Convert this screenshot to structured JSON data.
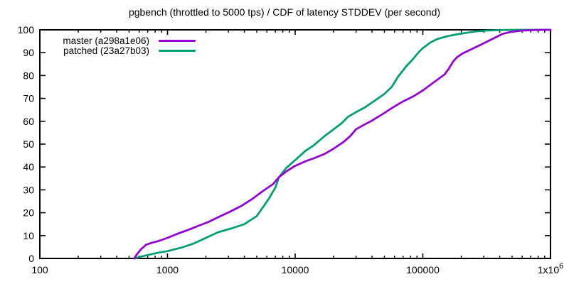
{
  "chart_data": {
    "type": "line",
    "title": "pgbench (throttled to 5000 tps) / CDF of latency STDDEV (per second)",
    "xlabel": "",
    "ylabel": "",
    "x_axis": {
      "scale": "log",
      "min": 100,
      "max": 1000000,
      "ticks": [
        {
          "v": 100,
          "label": "100"
        },
        {
          "v": 1000,
          "label": "1000"
        },
        {
          "v": 10000,
          "label": "10000"
        },
        {
          "v": 100000,
          "label": "100000"
        },
        {
          "v": 1000000,
          "label": "1x10",
          "sup": "6"
        }
      ],
      "minor_ticks": true
    },
    "y_axis": {
      "min": 0,
      "max": 100,
      "step": 10,
      "tick_labels": [
        "0",
        "10",
        "20",
        "30",
        "40",
        "50",
        "60",
        "70",
        "80",
        "90",
        "100"
      ]
    },
    "grid": false,
    "legend": {
      "position": "top-left",
      "entries": [
        {
          "label": "master (a298a1e06)",
          "color": "#9400d3"
        },
        {
          "label": "patched (23a27b03)",
          "color": "#009e73"
        }
      ]
    },
    "series": [
      {
        "name": "patched (23a27b03)",
        "color": "#009e73",
        "points": [
          [
            550,
            0
          ],
          [
            600,
            0.6
          ],
          [
            700,
            1.5
          ],
          [
            850,
            2.5
          ],
          [
            1000,
            3.2
          ],
          [
            1300,
            4.8
          ],
          [
            1600,
            6.5
          ],
          [
            2000,
            9
          ],
          [
            2500,
            11.5
          ],
          [
            3200,
            13.2
          ],
          [
            4000,
            15
          ],
          [
            5000,
            18.5
          ],
          [
            6200,
            26
          ],
          [
            7000,
            31
          ],
          [
            7450,
            35.5
          ],
          [
            8500,
            39.5
          ],
          [
            10000,
            43
          ],
          [
            12000,
            47
          ],
          [
            14000,
            49.5
          ],
          [
            17000,
            53.5
          ],
          [
            20000,
            56.5
          ],
          [
            23000,
            59
          ],
          [
            26000,
            62
          ],
          [
            30000,
            64
          ],
          [
            35000,
            66
          ],
          [
            42000,
            69
          ],
          [
            50000,
            72
          ],
          [
            57000,
            75
          ],
          [
            64000,
            79.5
          ],
          [
            74000,
            84
          ],
          [
            83000,
            87
          ],
          [
            92000,
            90
          ],
          [
            100000,
            92
          ],
          [
            115000,
            94.5
          ],
          [
            130000,
            96
          ],
          [
            155000,
            97.2
          ],
          [
            185000,
            98
          ],
          [
            220000,
            98.7
          ],
          [
            260000,
            99.3
          ],
          [
            320000,
            99.7
          ],
          [
            420000,
            99.9
          ],
          [
            550000,
            100
          ],
          [
            1000000,
            100
          ]
        ]
      },
      {
        "name": "master (a298a1e06)",
        "color": "#9400d3",
        "points": [
          [
            550,
            0
          ],
          [
            570,
            1.5
          ],
          [
            620,
            4
          ],
          [
            680,
            6
          ],
          [
            750,
            6.8
          ],
          [
            850,
            7.6
          ],
          [
            1000,
            9
          ],
          [
            1200,
            10.8
          ],
          [
            1450,
            12.5
          ],
          [
            1750,
            14.3
          ],
          [
            2100,
            16
          ],
          [
            2600,
            18.5
          ],
          [
            3100,
            20.5
          ],
          [
            3800,
            23
          ],
          [
            4600,
            26
          ],
          [
            5600,
            29.5
          ],
          [
            6700,
            32.5
          ],
          [
            7450,
            35.5
          ],
          [
            8500,
            38
          ],
          [
            10000,
            40.5
          ],
          [
            12000,
            42.5
          ],
          [
            14000,
            43.8
          ],
          [
            17000,
            45.7
          ],
          [
            20000,
            48
          ],
          [
            24000,
            51
          ],
          [
            27000,
            53.5
          ],
          [
            30000,
            56.5
          ],
          [
            34000,
            58.2
          ],
          [
            40000,
            60.3
          ],
          [
            48000,
            63
          ],
          [
            58000,
            66
          ],
          [
            70000,
            68.7
          ],
          [
            85000,
            71
          ],
          [
            100000,
            73.5
          ],
          [
            115000,
            76
          ],
          [
            130000,
            78.2
          ],
          [
            148000,
            80.5
          ],
          [
            160000,
            83
          ],
          [
            172000,
            86
          ],
          [
            185000,
            88
          ],
          [
            205000,
            89.7
          ],
          [
            240000,
            91.5
          ],
          [
            290000,
            93.7
          ],
          [
            350000,
            96
          ],
          [
            420000,
            98.2
          ],
          [
            480000,
            99
          ],
          [
            580000,
            99.6
          ],
          [
            750000,
            99.9
          ],
          [
            1000000,
            100
          ]
        ]
      }
    ],
    "style": {
      "axis_color": "#000000",
      "background": "#ffffff",
      "line_width": 2.75
    }
  }
}
